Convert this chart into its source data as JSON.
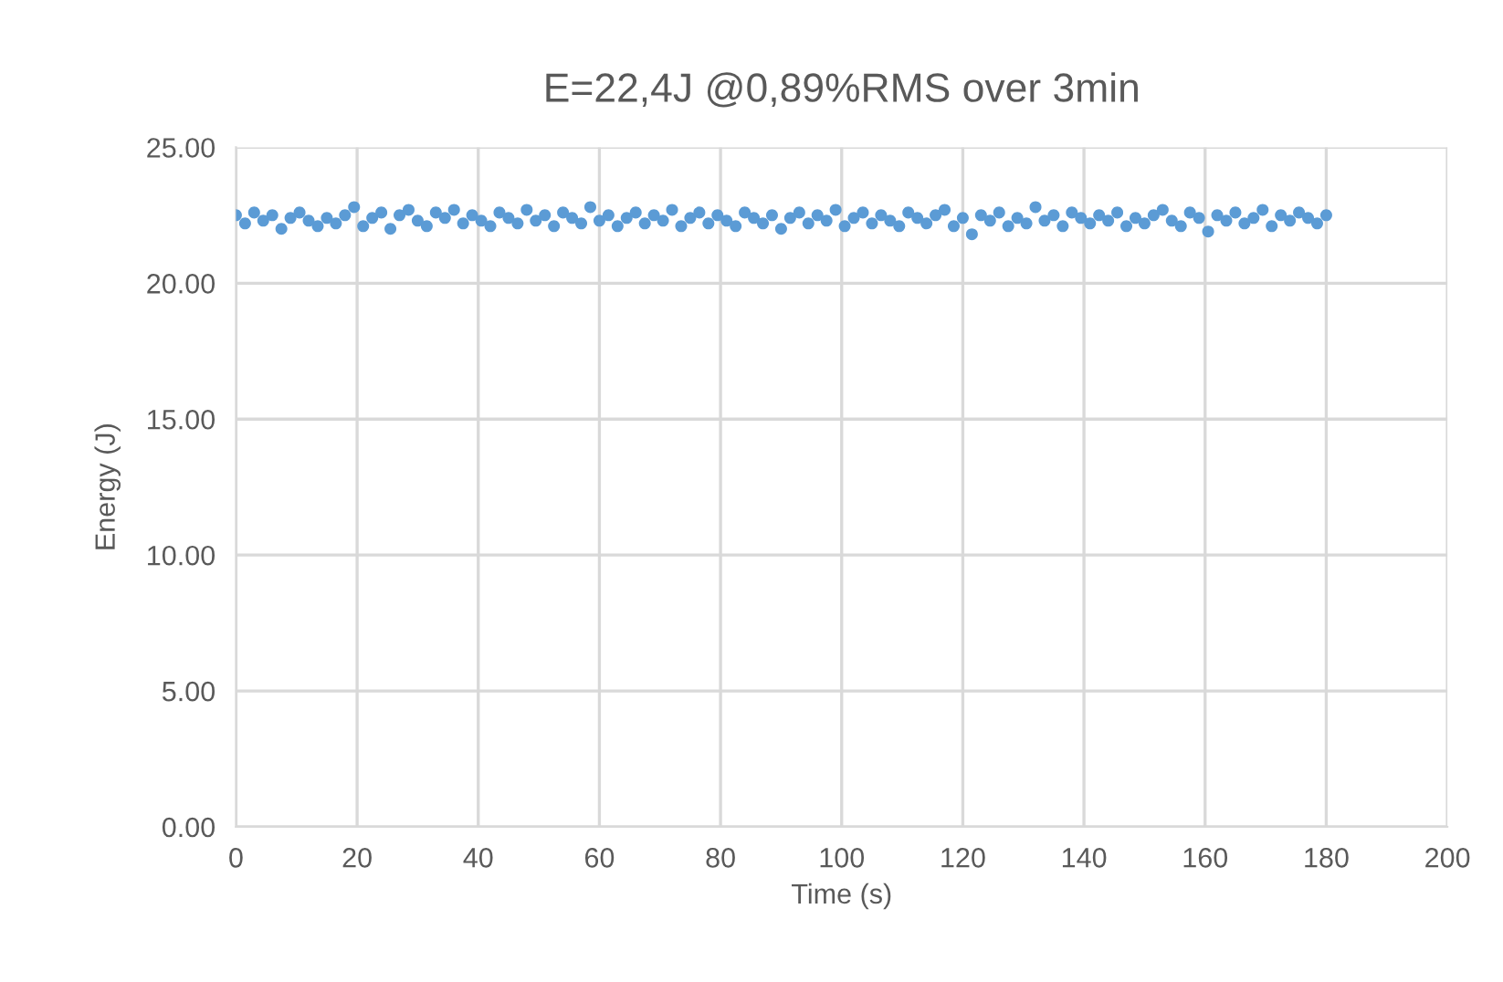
{
  "chart_data": {
    "type": "scatter",
    "title": "E=22,4J @0,89%RMS over 3min",
    "xlabel": "Time (s)",
    "ylabel": "Energy (J)",
    "xlim": [
      0,
      200
    ],
    "xticks": [
      0,
      20,
      40,
      60,
      80,
      100,
      120,
      140,
      160,
      180,
      200
    ],
    "ylim": [
      0,
      25
    ],
    "yticks": [
      {
        "value": 0,
        "label": "0.00"
      },
      {
        "value": 5,
        "label": "5.00"
      },
      {
        "value": 10,
        "label": "10.00"
      },
      {
        "value": 15,
        "label": "15.00"
      },
      {
        "value": 20,
        "label": "20.00"
      },
      {
        "value": 25,
        "label": "25.00"
      }
    ],
    "grid": true,
    "legend": false,
    "marker": "circle",
    "x": [
      0,
      1.5,
      3,
      4.5,
      6,
      7.5,
      9,
      10.5,
      12,
      13.5,
      15,
      16.5,
      18,
      19.5,
      21,
      22.5,
      24,
      25.5,
      27,
      28.5,
      30,
      31.5,
      33,
      34.5,
      36,
      37.5,
      39,
      40.5,
      42,
      43.5,
      45,
      46.5,
      48,
      49.5,
      51,
      52.5,
      54,
      55.5,
      57,
      58.5,
      60,
      61.5,
      63,
      64.5,
      66,
      67.5,
      69,
      70.5,
      72,
      73.5,
      75,
      76.5,
      78,
      79.5,
      81,
      82.5,
      84,
      85.5,
      87,
      88.5,
      90,
      91.5,
      93,
      94.5,
      96,
      97.5,
      99,
      100.5,
      102,
      103.5,
      105,
      106.5,
      108,
      109.5,
      111,
      112.5,
      114,
      115.5,
      117,
      118.5,
      120,
      121.5,
      123,
      124.5,
      126,
      127.5,
      129,
      130.5,
      132,
      133.5,
      135,
      136.5,
      138,
      139.5,
      141,
      142.5,
      144,
      145.5,
      147,
      148.5,
      150,
      151.5,
      153,
      154.5,
      156,
      157.5,
      159,
      160.5,
      162,
      163.5,
      165,
      166.5,
      168,
      169.5,
      171,
      172.5,
      174,
      175.5,
      177,
      178.5,
      180
    ],
    "series": [
      {
        "color": "#5b9bd5",
        "values": [
          22.5,
          22.2,
          22.6,
          22.3,
          22.5,
          22.0,
          22.4,
          22.6,
          22.3,
          22.1,
          22.4,
          22.2,
          22.5,
          22.8,
          22.1,
          22.4,
          22.6,
          22.0,
          22.5,
          22.7,
          22.3,
          22.1,
          22.6,
          22.4,
          22.7,
          22.2,
          22.5,
          22.3,
          22.1,
          22.6,
          22.4,
          22.2,
          22.7,
          22.3,
          22.5,
          22.1,
          22.6,
          22.4,
          22.2,
          22.8,
          22.3,
          22.5,
          22.1,
          22.4,
          22.6,
          22.2,
          22.5,
          22.3,
          22.7,
          22.1,
          22.4,
          22.6,
          22.2,
          22.5,
          22.3,
          22.1,
          22.6,
          22.4,
          22.2,
          22.5,
          22.0,
          22.4,
          22.6,
          22.2,
          22.5,
          22.3,
          22.7,
          22.1,
          22.4,
          22.6,
          22.2,
          22.5,
          22.3,
          22.1,
          22.6,
          22.4,
          22.2,
          22.5,
          22.7,
          22.1,
          22.4,
          21.8,
          22.5,
          22.3,
          22.6,
          22.1,
          22.4,
          22.2,
          22.8,
          22.3,
          22.5,
          22.1,
          22.6,
          22.4,
          22.2,
          22.5,
          22.3,
          22.6,
          22.1,
          22.4,
          22.2,
          22.5,
          22.7,
          22.3,
          22.1,
          22.6,
          22.4,
          21.9,
          22.5,
          22.3,
          22.6,
          22.2,
          22.4,
          22.7,
          22.1,
          22.5,
          22.3,
          22.6,
          22.4,
          22.2,
          22.5
        ]
      }
    ]
  }
}
